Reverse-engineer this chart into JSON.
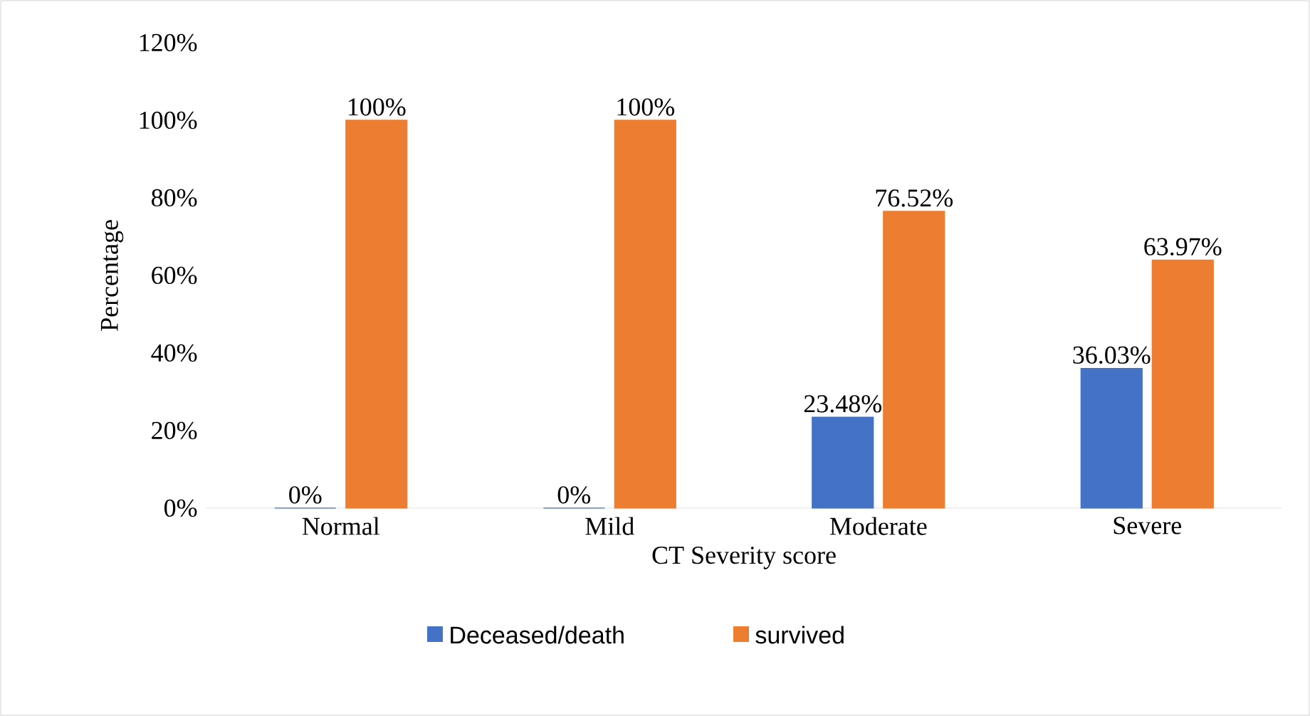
{
  "chart_data": {
    "type": "bar",
    "xlabel": "CT Severity score",
    "ylabel": "Percentage",
    "categories": [
      "Normal",
      "Mild",
      "Moderate",
      "Severe"
    ],
    "series": [
      {
        "name": "Deceased/death",
        "color": "#4472c4",
        "values": [
          0,
          0,
          23.48,
          36.03
        ],
        "value_labels": [
          "0%",
          "0%",
          "23.48%",
          "36.03%"
        ]
      },
      {
        "name": "survived",
        "color": "#ed7d31",
        "values": [
          100,
          100,
          76.52,
          63.97
        ],
        "value_labels": [
          "100%",
          "100%",
          "76.52%",
          "63.97%"
        ]
      }
    ],
    "ylim": [
      0,
      120
    ],
    "yticks": [
      {
        "value": 0,
        "label": "0%"
      },
      {
        "value": 20,
        "label": "20%"
      },
      {
        "value": 40,
        "label": "40%"
      },
      {
        "value": 60,
        "label": "60%"
      },
      {
        "value": 80,
        "label": "80%"
      },
      {
        "value": 100,
        "label": "100%"
      },
      {
        "value": 120,
        "label": "120%"
      }
    ],
    "legend": "bottom"
  }
}
